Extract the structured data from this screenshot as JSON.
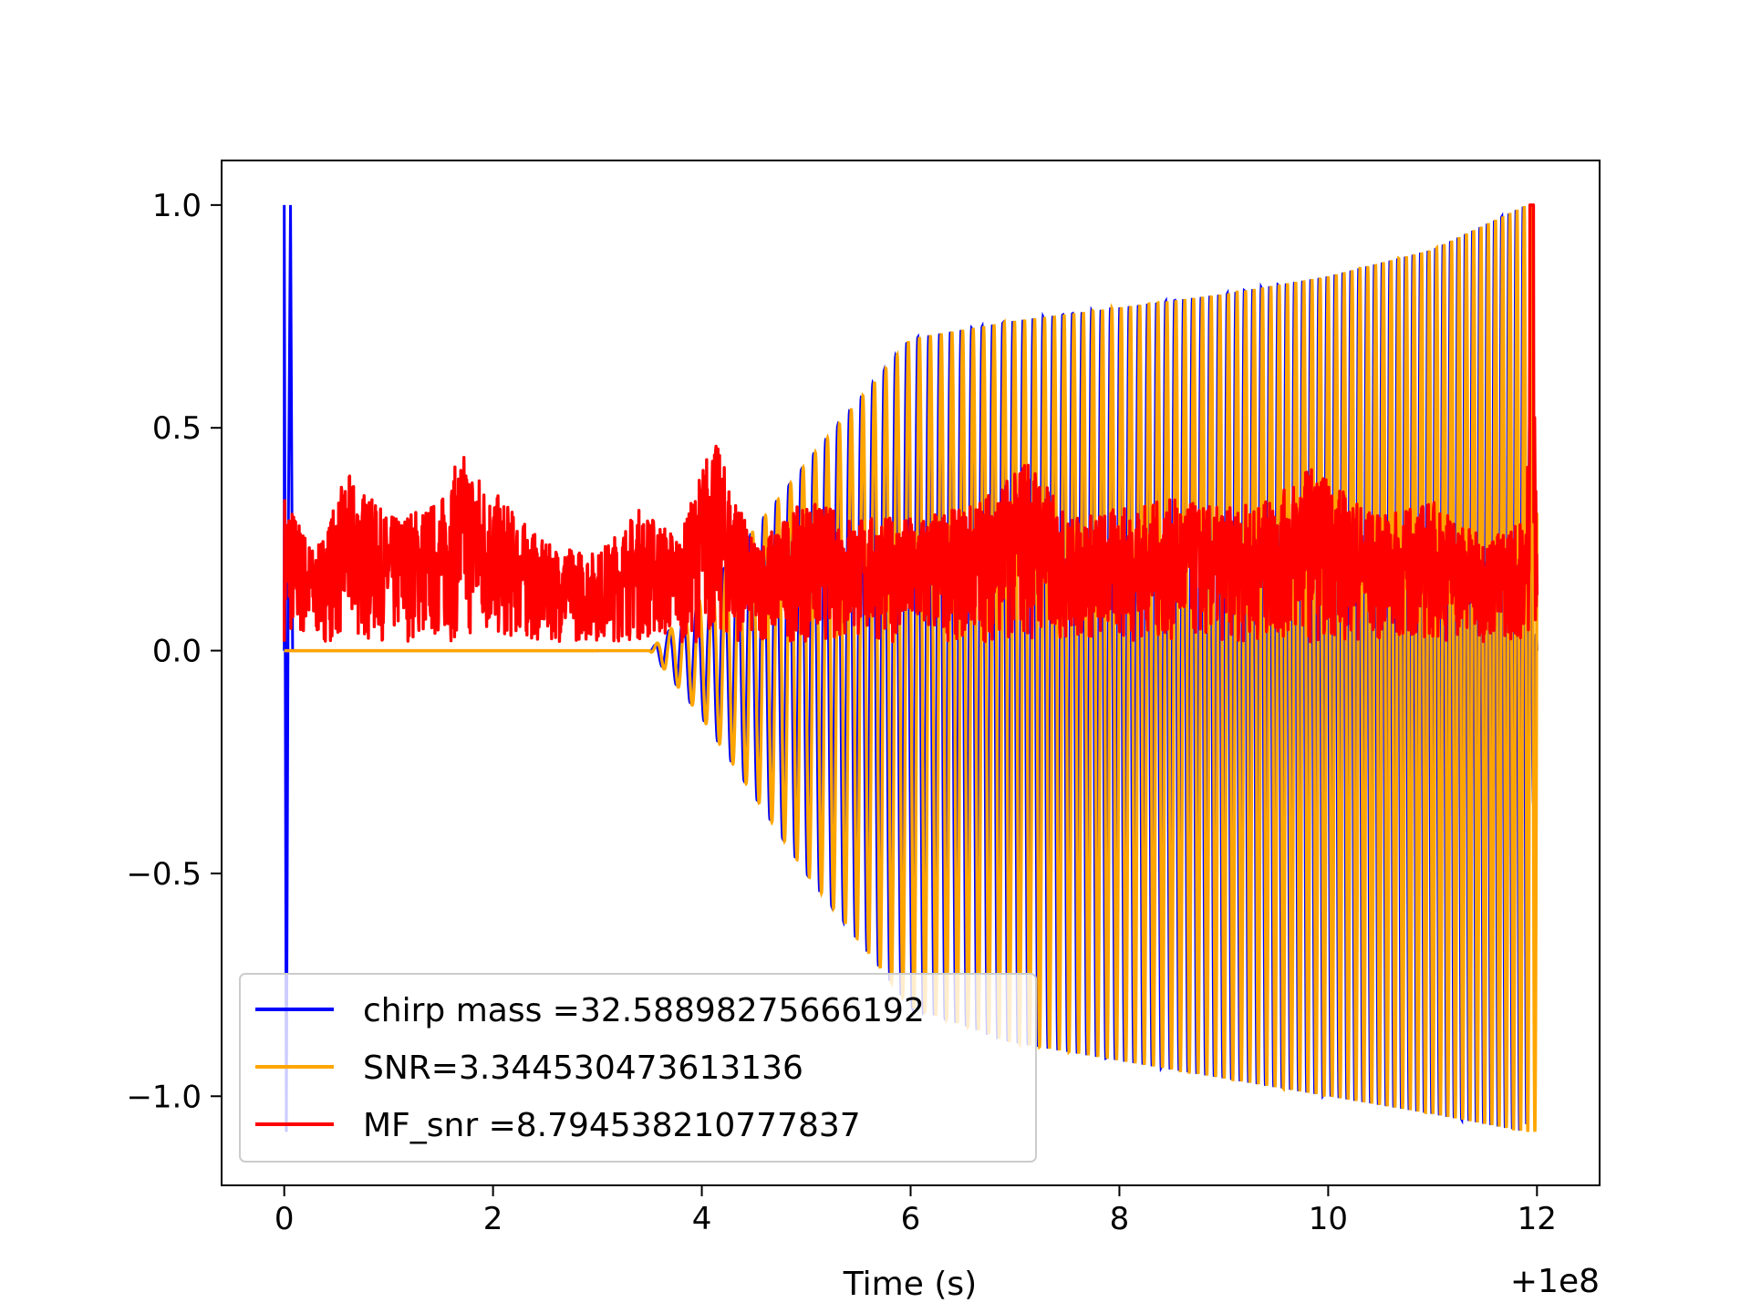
{
  "chart_data": {
    "type": "line",
    "title": "",
    "xlabel": "Time (s)",
    "ylabel": "",
    "x_offset_label": "+1e8",
    "xlim": [
      -0.6,
      12.6
    ],
    "ylim": [
      -1.2,
      1.1
    ],
    "x_ticks": [
      0,
      2,
      4,
      6,
      8,
      10,
      12
    ],
    "x_tick_labels": [
      "0",
      "2",
      "4",
      "6",
      "8",
      "10",
      "12"
    ],
    "y_ticks": [
      1.0,
      0.5,
      0.0,
      -0.5,
      -1.0
    ],
    "y_tick_labels": [
      "1.0",
      "0.5",
      "0.0",
      "−0.5",
      "−1.0"
    ],
    "grid": false,
    "legend_position": "lower-left",
    "series": [
      {
        "name": "chirp mass =32.58898275666192",
        "color": "#0000ff",
        "x": [
          0,
          0.02,
          0.04,
          0.06,
          0.08,
          3.5,
          4.0,
          5.0,
          6.0,
          7.0,
          8.0,
          9.0,
          10.0,
          11.0,
          11.9,
          12.0
        ],
        "amplitude_upper": [
          1.0,
          -1.08,
          0.3,
          1.0,
          0.0,
          0.0,
          0.12,
          0.42,
          0.7,
          0.74,
          0.77,
          0.8,
          0.84,
          0.9,
          1.0,
          0.0
        ],
        "amplitude_lower": [
          1.0,
          -1.08,
          0.3,
          1.0,
          0.0,
          0.0,
          -0.15,
          -0.5,
          -0.8,
          -0.88,
          -0.92,
          -0.96,
          -1.0,
          -1.04,
          -1.08,
          0.0
        ]
      },
      {
        "name": "SNR=3.344530473613136",
        "color": "#ffa500",
        "x": [
          0,
          3.5,
          4.0,
          5.0,
          6.0,
          7.0,
          8.0,
          9.0,
          10.0,
          11.0,
          11.9,
          12.0
        ],
        "amplitude_upper": [
          0.0,
          0.0,
          0.12,
          0.42,
          0.7,
          0.74,
          0.77,
          0.8,
          0.84,
          0.9,
          1.0,
          1.0
        ],
        "amplitude_lower": [
          0.0,
          0.0,
          -0.15,
          -0.5,
          -0.8,
          -0.88,
          -0.92,
          -0.96,
          -1.0,
          -1.04,
          -1.08,
          -1.08
        ]
      },
      {
        "name": "MF_snr =8.794538210777837",
        "color": "#ff0000",
        "x": [
          0,
          0.3,
          0.6,
          1.0,
          1.5,
          1.7,
          2.0,
          2.5,
          3.0,
          3.4,
          3.8,
          4.1,
          4.5,
          5.0,
          5.5,
          6.0,
          6.5,
          7.0,
          7.1,
          7.5,
          8.0,
          8.5,
          9.0,
          9.5,
          9.8,
          10.5,
          11.0,
          11.5,
          11.9,
          11.95,
          12.0
        ],
        "values": [
          0.36,
          0.22,
          0.4,
          0.3,
          0.34,
          0.45,
          0.36,
          0.24,
          0.22,
          0.32,
          0.26,
          0.49,
          0.24,
          0.34,
          0.3,
          0.3,
          0.32,
          0.4,
          0.45,
          0.3,
          0.32,
          0.34,
          0.32,
          0.34,
          0.42,
          0.3,
          0.34,
          0.25,
          0.3,
          1.0,
          0.18
        ]
      }
    ]
  }
}
